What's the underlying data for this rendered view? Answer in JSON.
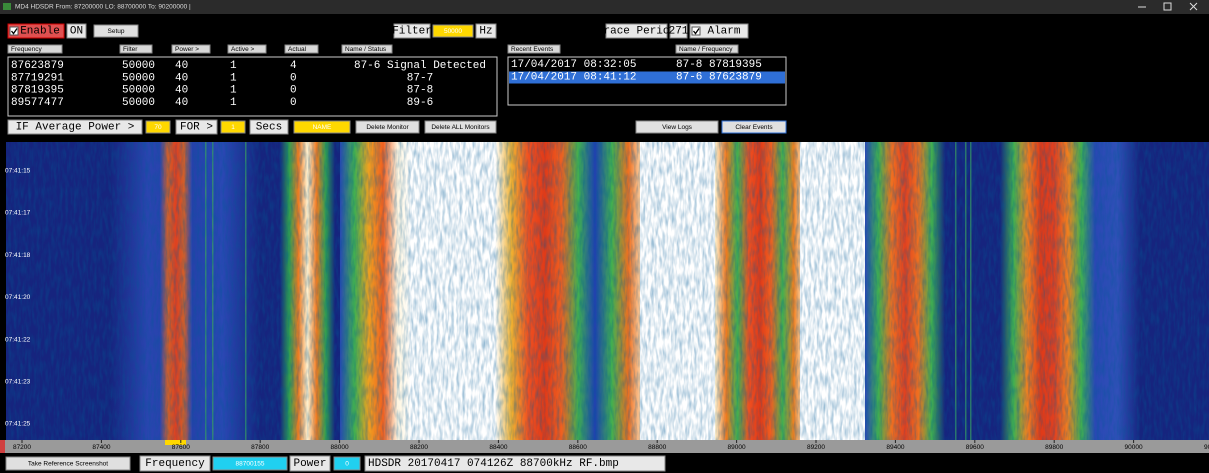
{
  "window": {
    "title": "MD4 HDSDR From: 87200000 LO: 88700000 To: 90200000 |"
  },
  "controls": {
    "enable": "Enable",
    "on": "ON",
    "setup": "Setup",
    "filter": "Filter",
    "filter_hz": 50000,
    "hz": "Hz",
    "grace_period": "Grace Period",
    "grace_value": 271,
    "alarm": "Alarm"
  },
  "monitors": {
    "headers": [
      "Frequency",
      "Filter",
      "Power >",
      "Active >",
      "Actual",
      "Name / Status"
    ],
    "rows": [
      [
        87623879,
        50000,
        40,
        1,
        4,
        "87-6 Signal Detected"
      ],
      [
        87719291,
        50000,
        40,
        1,
        0,
        "87-7"
      ],
      [
        87819395,
        50000,
        40,
        1,
        0,
        "87-8"
      ],
      [
        89577477,
        50000,
        40,
        1,
        0,
        "89-6"
      ]
    ]
  },
  "events": {
    "headers": [
      "Recent Events",
      "Name / Frequency"
    ],
    "rows": [
      [
        "17/04/2017 08:32:05",
        "87-8 87819395"
      ],
      [
        "17/04/2017 08:41:12",
        "87-6 87623879"
      ]
    ],
    "selected": 1
  },
  "trigger": {
    "label": "IF Average Power >",
    "power": 70,
    "for": "FOR >",
    "secs_value": 1,
    "secs": "Secs",
    "name": "NAME",
    "delete": "Delete Monitor",
    "delete_all": "Delete ALL Monitors",
    "view_logs": "View Logs",
    "clear_events": "Clear Events"
  },
  "waterfall": {
    "times": [
      "07:41:15",
      "07:41:17",
      "07:41:18",
      "07:41:20",
      "07:41:22",
      "07:41:23",
      "07:41:25"
    ],
    "freq_ticks": [
      87200,
      87400,
      87600,
      87800,
      88000,
      88200,
      88400,
      88600,
      88800,
      89000,
      89200,
      89400,
      89600,
      89800,
      90000,
      90200
    ]
  },
  "status_bar": {
    "screenshot": "Take Reference Screenshot",
    "frequency_label": "Frequency",
    "frequency": 88700155,
    "power_label": "Power",
    "power": 0,
    "file": "HDSDR 20170417 074126Z 88700kHz RF.bmp"
  }
}
